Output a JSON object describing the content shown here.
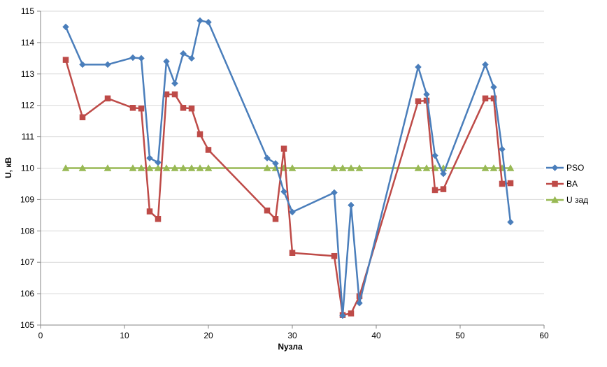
{
  "chart_data": {
    "type": "line",
    "xlabel": "Nузла",
    "ylabel": "U, кВ",
    "xlim": [
      0,
      60
    ],
    "ylim": [
      105,
      115
    ],
    "xticks": [
      "0",
      "10",
      "20",
      "30",
      "40",
      "50",
      "60"
    ],
    "yticks": [
      "105",
      "106",
      "107",
      "108",
      "109",
      "110",
      "111",
      "112",
      "113",
      "114",
      "115"
    ],
    "grid": "horizontal",
    "legend_position": "right",
    "series": [
      {
        "name": "PSO",
        "color": "#4a7ebb",
        "marker": "diamond",
        "x": [
          3,
          5,
          8,
          11,
          12,
          13,
          14,
          15,
          16,
          17,
          18,
          19,
          20,
          27,
          28,
          29,
          30,
          35,
          36,
          37,
          38,
          45,
          46,
          47,
          48,
          53,
          54,
          55,
          56
        ],
        "y": [
          114.5,
          113.3,
          113.3,
          113.52,
          113.5,
          110.32,
          110.18,
          113.4,
          112.7,
          113.65,
          113.5,
          114.7,
          114.65,
          110.32,
          110.15,
          109.25,
          108.6,
          109.22,
          105.3,
          108.82,
          105.7,
          113.22,
          112.35,
          110.4,
          109.82,
          113.3,
          112.58,
          110.6,
          108.28
        ]
      },
      {
        "name": "BA",
        "color": "#be4b48",
        "marker": "square",
        "x": [
          3,
          5,
          8,
          11,
          12,
          13,
          14,
          15,
          16,
          17,
          18,
          19,
          20,
          27,
          28,
          29,
          30,
          35,
          36,
          37,
          38,
          45,
          46,
          47,
          48,
          53,
          54,
          55,
          56
        ],
        "y": [
          113.45,
          111.62,
          112.22,
          111.92,
          111.9,
          108.62,
          108.38,
          112.35,
          112.35,
          111.92,
          111.9,
          111.08,
          110.58,
          108.65,
          108.38,
          110.62,
          107.3,
          107.2,
          105.32,
          105.37,
          105.92,
          112.13,
          112.15,
          109.3,
          109.33,
          112.22,
          112.22,
          109.5,
          109.52
        ]
      },
      {
        "name": "U зад",
        "color": "#98b954",
        "marker": "triangle",
        "x": [
          3,
          5,
          8,
          11,
          12,
          13,
          14,
          15,
          16,
          17,
          18,
          19,
          20,
          27,
          28,
          29,
          30,
          35,
          36,
          37,
          38,
          45,
          46,
          47,
          48,
          53,
          54,
          55,
          56
        ],
        "y": [
          110,
          110,
          110,
          110,
          110,
          110,
          110,
          110,
          110,
          110,
          110,
          110,
          110,
          110,
          110,
          110,
          110,
          110,
          110,
          110,
          110,
          110,
          110,
          110,
          110,
          110,
          110,
          110,
          110
        ]
      }
    ]
  }
}
